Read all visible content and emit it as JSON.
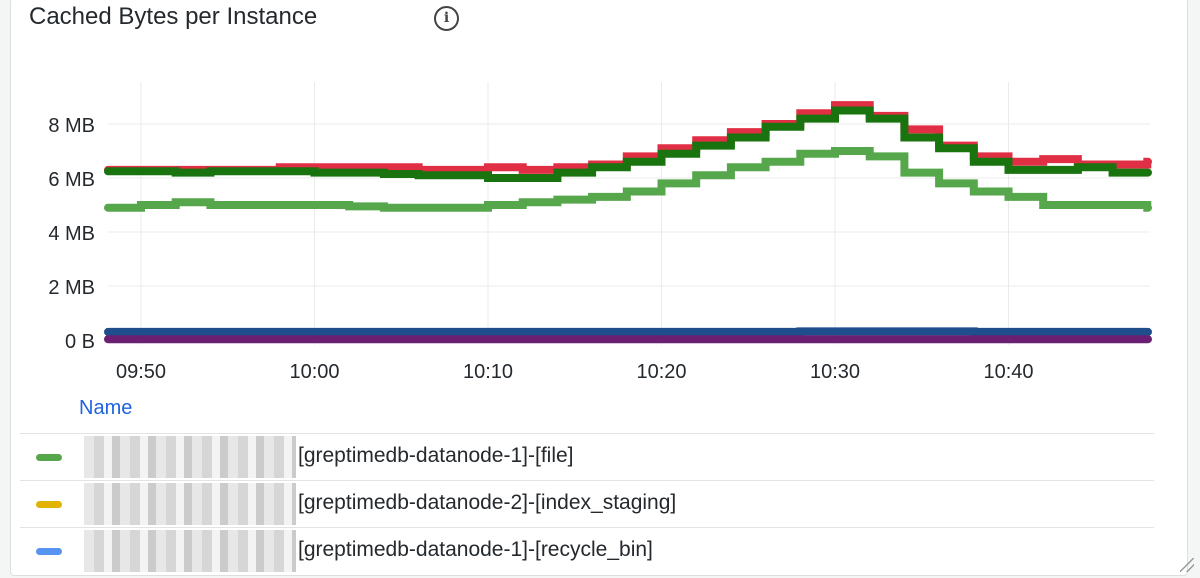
{
  "panel": {
    "title": "Cached Bytes per Instance",
    "info_icon": "info-circle-icon"
  },
  "chart_data": {
    "type": "line",
    "title": "Cached Bytes per Instance",
    "x": [
      "09:48",
      "09:50",
      "09:52",
      "09:54",
      "09:56",
      "09:58",
      "10:00",
      "10:02",
      "10:04",
      "10:06",
      "10:08",
      "10:10",
      "10:12",
      "10:14",
      "10:16",
      "10:18",
      "10:20",
      "10:22",
      "10:24",
      "10:26",
      "10:28",
      "10:30",
      "10:32",
      "10:34",
      "10:36",
      "10:38",
      "10:40",
      "10:42",
      "10:44",
      "10:46",
      "10:48"
    ],
    "x_ticks": [
      "09:50",
      "10:00",
      "10:10",
      "10:20",
      "10:30",
      "10:40"
    ],
    "y_ticks": [
      "0 B",
      "2 MB",
      "4 MB",
      "6 MB",
      "8 MB"
    ],
    "ylim_mb": [
      0,
      9.2
    ],
    "grid": true,
    "series": [
      {
        "color": "#e02f44",
        "values": [
          6.3,
          6.3,
          6.3,
          6.3,
          6.3,
          6.4,
          6.4,
          6.4,
          6.4,
          6.3,
          6.3,
          6.4,
          6.3,
          6.4,
          6.5,
          6.8,
          7.1,
          7.4,
          7.7,
          8.0,
          8.4,
          8.7,
          8.3,
          7.8,
          7.2,
          6.8,
          6.6,
          6.7,
          6.5,
          6.5,
          6.6
        ]
      },
      {
        "color": "#56a64b",
        "values": [
          4.9,
          5.0,
          5.1,
          5.0,
          5.0,
          5.0,
          5.0,
          4.95,
          4.9,
          4.9,
          4.9,
          5.0,
          5.1,
          5.2,
          5.3,
          5.5,
          5.8,
          6.1,
          6.4,
          6.6,
          6.9,
          7.0,
          6.8,
          6.2,
          5.8,
          5.5,
          5.3,
          5.0,
          5.0,
          5.0,
          4.9
        ]
      },
      {
        "color": "#19730e",
        "values": [
          6.25,
          6.25,
          6.2,
          6.25,
          6.25,
          6.25,
          6.2,
          6.2,
          6.15,
          6.1,
          6.1,
          6.0,
          6.0,
          6.2,
          6.4,
          6.6,
          6.9,
          7.2,
          7.5,
          7.9,
          8.2,
          8.5,
          8.2,
          7.5,
          7.1,
          6.6,
          6.3,
          6.3,
          6.4,
          6.2,
          6.2
        ]
      },
      {
        "color": "#1f4e8c",
        "values": [
          0.3,
          0.3,
          0.3,
          0.3,
          0.3,
          0.3,
          0.3,
          0.3,
          0.3,
          0.3,
          0.3,
          0.3,
          0.3,
          0.3,
          0.3,
          0.3,
          0.3,
          0.3,
          0.3,
          0.3,
          0.32,
          0.32,
          0.32,
          0.32,
          0.32,
          0.3,
          0.3,
          0.3,
          0.3,
          0.3,
          0.3
        ]
      },
      {
        "color": "#6b1f73",
        "values": [
          0.03,
          0.03,
          0.03,
          0.03,
          0.03,
          0.03,
          0.03,
          0.03,
          0.03,
          0.03,
          0.03,
          0.03,
          0.03,
          0.03,
          0.03,
          0.03,
          0.03,
          0.03,
          0.03,
          0.03,
          0.03,
          0.03,
          0.03,
          0.03,
          0.03,
          0.03,
          0.03,
          0.03,
          0.03,
          0.03,
          0.03
        ]
      }
    ]
  },
  "legend": {
    "header": "Name",
    "items": [
      {
        "label": "[greptimedb-datanode-1]-[file]",
        "color": "#56a64b"
      },
      {
        "label": "[greptimedb-datanode-2]-[index_staging]",
        "color": "#e0b400"
      },
      {
        "label": "[greptimedb-datanode-1]-[recycle_bin]",
        "color": "#5794f2"
      }
    ]
  }
}
